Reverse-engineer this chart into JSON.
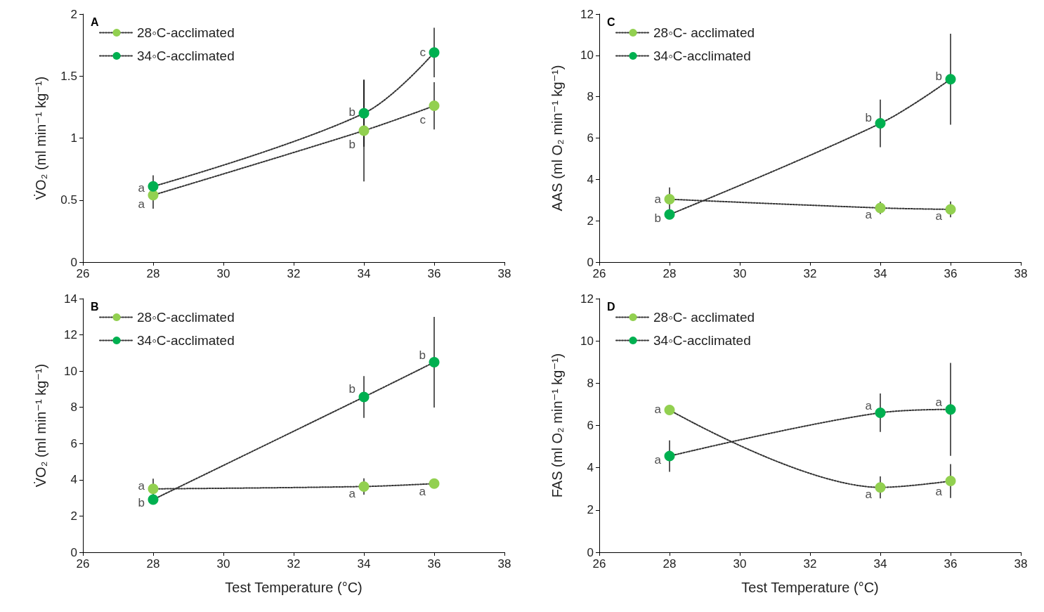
{
  "chart_data": [
    {
      "type": "line",
      "title": "A",
      "ylabel": "V̇O₂ (ml min⁻¹ kg⁻¹)",
      "xlim": [
        26,
        38
      ],
      "xticks": [
        26,
        28,
        30,
        32,
        34,
        36,
        38
      ],
      "ylim": [
        0,
        2
      ],
      "yticks": [
        0,
        0.5,
        1,
        1.5,
        2
      ],
      "grid": false,
      "legend": "top left",
      "marker": "circle",
      "line_style": "dotted",
      "series": [
        {
          "name": "28◦C-acclimated",
          "color": "#92d050",
          "x": [
            28,
            34,
            36
          ],
          "values": [
            0.54,
            1.06,
            1.26
          ],
          "errors": [
            0.11,
            0.41,
            0.19
          ]
        },
        {
          "name": "34◦C-acclimated",
          "color": "#00b050",
          "x": [
            28,
            34,
            36
          ],
          "values": [
            0.61,
            1.2,
            1.69
          ],
          "errors": [
            0.09,
            0.27,
            0.2
          ]
        }
      ],
      "annotations": [
        {
          "text": "a",
          "x": 28,
          "y": 0.6
        },
        {
          "text": "a",
          "x": 28,
          "y": 0.47
        },
        {
          "text": "b",
          "x": 34,
          "y": 1.21
        },
        {
          "text": "b",
          "x": 34,
          "y": 0.95
        },
        {
          "text": "c",
          "x": 36,
          "y": 1.69
        },
        {
          "text": "c",
          "x": 36,
          "y": 1.15
        }
      ]
    },
    {
      "type": "line",
      "title": "C",
      "ylabel": "AAS (ml O₂ min⁻¹ kg⁻¹)",
      "xlim": [
        26,
        38
      ],
      "xticks": [
        26,
        28,
        30,
        32,
        34,
        36,
        38
      ],
      "ylim": [
        0,
        12
      ],
      "yticks": [
        0,
        2,
        4,
        6,
        8,
        10,
        12
      ],
      "grid": false,
      "legend": "top left",
      "marker": "circle",
      "line_style": "dotted",
      "series": [
        {
          "name": "28◦C- acclimated",
          "color": "#92d050",
          "x": [
            28,
            34,
            36
          ],
          "values": [
            3.04,
            2.62,
            2.55
          ],
          "errors": [
            0.57,
            0.3,
            0.38
          ]
        },
        {
          "name": "34◦C-acclimated",
          "color": "#00b050",
          "x": [
            28,
            34,
            36
          ],
          "values": [
            2.3,
            6.71,
            8.85
          ],
          "errors": [
            null,
            1.15,
            2.2
          ]
        }
      ],
      "annotations": [
        {
          "text": "a",
          "x": 28,
          "y": 3.04
        },
        {
          "text": "b",
          "x": 28,
          "y": 2.13
        },
        {
          "text": "b",
          "x": 34,
          "y": 6.97
        },
        {
          "text": "b",
          "x": 36,
          "y": 9.0
        },
        {
          "text": "a",
          "x": 34,
          "y": 2.28
        },
        {
          "text": "a",
          "x": 36,
          "y": 2.22
        }
      ]
    },
    {
      "type": "line",
      "title": "B",
      "xlabel": "Test Temperature (°C)",
      "ylabel": "V̇O₂ (ml min⁻¹ kg⁻¹)",
      "xlim": [
        26,
        38
      ],
      "xticks": [
        26,
        28,
        30,
        32,
        34,
        36,
        38
      ],
      "ylim": [
        0,
        14
      ],
      "yticks": [
        0,
        2,
        4,
        6,
        8,
        10,
        12,
        14
      ],
      "grid": false,
      "legend": "top left",
      "marker": "circle",
      "line_style": "dotted",
      "series": [
        {
          "name": "28◦C-acclimated",
          "color": "#92d050",
          "x": [
            28,
            34,
            36
          ],
          "values": [
            3.5,
            3.63,
            3.79
          ],
          "errors": [
            0.56,
            0.45,
            null
          ]
        },
        {
          "name": "34◦C-acclimated",
          "color": "#00b050",
          "x": [
            28,
            34,
            36
          ],
          "values": [
            2.91,
            8.57,
            10.49
          ],
          "errors": [
            null,
            1.15,
            2.5
          ]
        }
      ],
      "annotations": [
        {
          "text": "a",
          "x": 28,
          "y": 3.67
        },
        {
          "text": "b",
          "x": 28,
          "y": 2.75
        },
        {
          "text": "b",
          "x": 34,
          "y": 9.02
        },
        {
          "text": "b",
          "x": 36,
          "y": 10.86
        },
        {
          "text": "a",
          "x": 34,
          "y": 3.22
        },
        {
          "text": "a",
          "x": 36,
          "y": 3.36
        }
      ]
    },
    {
      "type": "line",
      "title": "D",
      "xlabel": "Test Temperature (°C)",
      "ylabel": "FAS (ml O₂ min⁻¹ kg⁻¹)",
      "xlim": [
        26,
        38
      ],
      "xticks": [
        26,
        28,
        30,
        32,
        34,
        36,
        38
      ],
      "ylim": [
        0,
        12
      ],
      "yticks": [
        0,
        2,
        4,
        6,
        8,
        10,
        12
      ],
      "grid": false,
      "legend": "top left",
      "marker": "circle",
      "line_style": "dotted",
      "series": [
        {
          "name": "28◦C- acclimated",
          "color": "#92d050",
          "x": [
            28,
            34,
            36
          ],
          "values": [
            6.73,
            3.07,
            3.37
          ],
          "errors": [
            null,
            0.52,
            0.8
          ]
        },
        {
          "name": "34◦C-acclimated",
          "color": "#00b050",
          "x": [
            28,
            34,
            36
          ],
          "values": [
            4.55,
            6.6,
            6.76
          ],
          "errors": [
            0.74,
            0.91,
            2.2
          ]
        }
      ],
      "annotations": [
        {
          "text": "a",
          "x": 28,
          "y": 6.76
        },
        {
          "text": "a",
          "x": 28,
          "y": 4.38
        },
        {
          "text": "a",
          "x": 34,
          "y": 6.92
        },
        {
          "text": "a",
          "x": 36,
          "y": 7.11
        },
        {
          "text": "a",
          "x": 34,
          "y": 2.73
        },
        {
          "text": "a",
          "x": 36,
          "y": 2.86
        }
      ]
    }
  ]
}
